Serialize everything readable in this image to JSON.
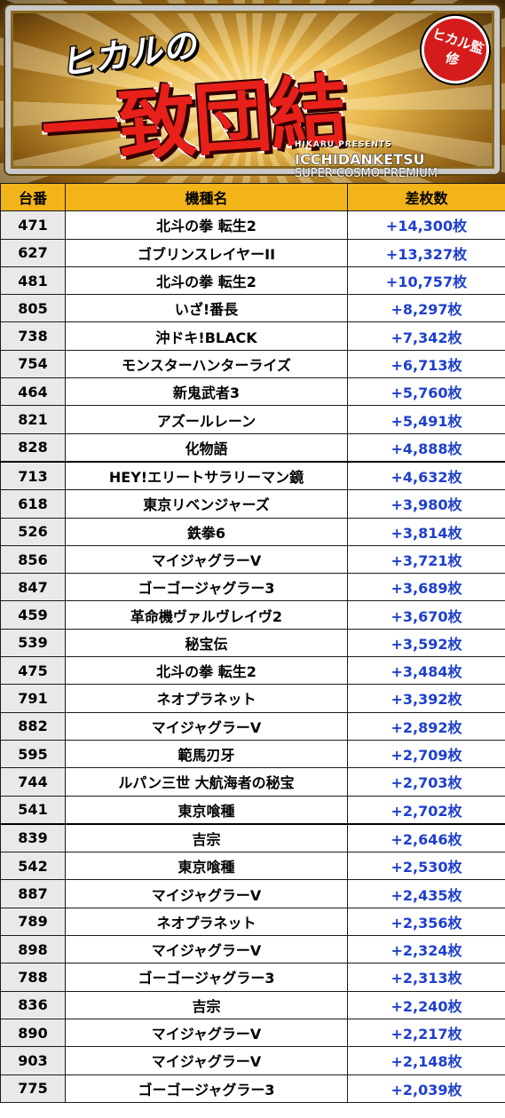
{
  "banner": {
    "subtitle": "ヒカルの",
    "title": "一致団結",
    "badge": "ヒカル監修",
    "presents": "HIKARU PRESENTS",
    "logo": "ICCHIDANKETSU",
    "watermark": "SUPER COSMO PREMIUM"
  },
  "table": {
    "headers": [
      "台番",
      "機種名",
      "差枚数"
    ],
    "unit": "枚",
    "rows": [
      {
        "no": "471",
        "model": "北斗の拳 転生2",
        "diff": "+14,300枚"
      },
      {
        "no": "627",
        "model": "ゴブリンスレイヤーII",
        "diff": "+13,327枚"
      },
      {
        "no": "481",
        "model": "北斗の拳 転生2",
        "diff": "+10,757枚"
      },
      {
        "no": "805",
        "model": "いざ!番長",
        "diff": "+8,297枚"
      },
      {
        "no": "738",
        "model": "沖ドキ!BLACK",
        "diff": "+7,342枚"
      },
      {
        "no": "754",
        "model": "モンスターハンターライズ",
        "diff": "+6,713枚"
      },
      {
        "no": "464",
        "model": "新鬼武者3",
        "diff": "+5,760枚"
      },
      {
        "no": "821",
        "model": "アズールレーン",
        "diff": "+5,491枚"
      },
      {
        "no": "828",
        "model": "化物語",
        "diff": "+4,888枚"
      },
      {
        "no": "713",
        "model": "HEY!エリートサラリーマン鏡",
        "diff": "+4,632枚"
      },
      {
        "no": "618",
        "model": "東京リベンジャーズ",
        "diff": "+3,980枚"
      },
      {
        "no": "526",
        "model": "鉄拳6",
        "diff": "+3,814枚"
      },
      {
        "no": "856",
        "model": "マイジャグラーV",
        "diff": "+3,721枚"
      },
      {
        "no": "847",
        "model": "ゴーゴージャグラー3",
        "diff": "+3,689枚"
      },
      {
        "no": "459",
        "model": "革命機ヴァルヴレイヴ2",
        "diff": "+3,670枚"
      },
      {
        "no": "539",
        "model": "秘宝伝",
        "diff": "+3,592枚"
      },
      {
        "no": "475",
        "model": "北斗の拳 転生2",
        "diff": "+3,484枚"
      },
      {
        "no": "791",
        "model": "ネオプラネット",
        "diff": "+3,392枚"
      },
      {
        "no": "882",
        "model": "マイジャグラーV",
        "diff": "+2,892枚"
      },
      {
        "no": "595",
        "model": "範馬刃牙",
        "diff": "+2,709枚"
      },
      {
        "no": "744",
        "model": "ルパン三世 大航海者の秘宝",
        "diff": "+2,703枚"
      },
      {
        "no": "541",
        "model": "東京喰種",
        "diff": "+2,702枚"
      },
      {
        "no": "839",
        "model": "吉宗",
        "diff": "+2,646枚"
      },
      {
        "no": "542",
        "model": "東京喰種",
        "diff": "+2,530枚"
      },
      {
        "no": "887",
        "model": "マイジャグラーV",
        "diff": "+2,435枚"
      },
      {
        "no": "789",
        "model": "ネオプラネット",
        "diff": "+2,356枚"
      },
      {
        "no": "898",
        "model": "マイジャグラーV",
        "diff": "+2,324枚"
      },
      {
        "no": "788",
        "model": "ゴーゴージャグラー3",
        "diff": "+2,313枚"
      },
      {
        "no": "836",
        "model": "吉宗",
        "diff": "+2,240枚"
      },
      {
        "no": "890",
        "model": "マイジャグラーV",
        "diff": "+2,217枚"
      },
      {
        "no": "903",
        "model": "マイジャグラーV",
        "diff": "+2,148枚"
      },
      {
        "no": "775",
        "model": "ゴーゴージャグラー3",
        "diff": "+2,039枚"
      }
    ]
  },
  "colors": {
    "header_bg": "#f3b41a",
    "number_bg": "#e9e9e9",
    "diff_text": "#1e3fcf",
    "title_red": "#e8201a"
  }
}
